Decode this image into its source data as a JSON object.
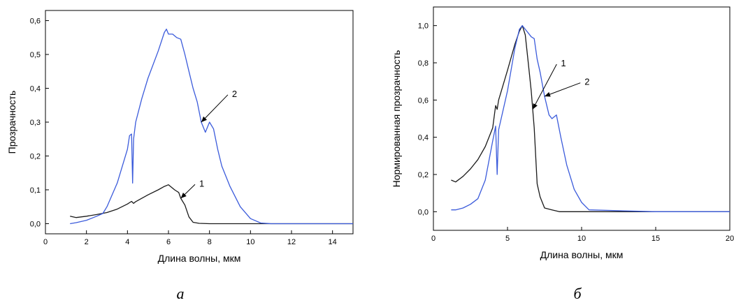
{
  "chart_data": [
    {
      "id": "a",
      "type": "line",
      "caption": "а",
      "xlabel": "Длина волны, мкм",
      "ylabel": "Прозрачность",
      "xlim": [
        0,
        15
      ],
      "ylim": [
        -0.03,
        0.63
      ],
      "xticks": [
        "0",
        "2",
        "4",
        "6",
        "8",
        "10",
        "12",
        "14"
      ],
      "yticks": [
        "0,0",
        "0,1",
        "0,2",
        "0,3",
        "0,4",
        "0,5",
        "0,6"
      ],
      "colors": {
        "1": "#1a1a1a",
        "2": "#3b5bdb"
      },
      "series": [
        {
          "name": "1",
          "x": [
            1.2,
            1.5,
            2,
            2.5,
            3,
            3.5,
            4,
            4.2,
            4.3,
            4.4,
            5,
            5.5,
            5.8,
            6,
            6.3,
            6.5,
            6.6,
            6.8,
            7,
            7.2,
            7.5,
            8,
            9,
            10,
            12,
            15
          ],
          "y": [
            0.022,
            0.018,
            0.022,
            0.027,
            0.033,
            0.043,
            0.058,
            0.066,
            0.06,
            0.065,
            0.085,
            0.1,
            0.11,
            0.115,
            0.1,
            0.092,
            0.075,
            0.055,
            0.02,
            0.004,
            0.001,
            0.0,
            0.0,
            0.0,
            0.0,
            0.0
          ]
        },
        {
          "name": "2",
          "x": [
            1.2,
            1.5,
            2,
            2.5,
            2.8,
            3,
            3.5,
            4,
            4.1,
            4.2,
            4.25,
            4.3,
            4.4,
            4.7,
            5,
            5.5,
            5.8,
            5.9,
            6,
            6.2,
            6.4,
            6.6,
            6.8,
            7,
            7.2,
            7.4,
            7.6,
            7.8,
            8,
            8.2,
            8.4,
            8.6,
            9,
            9.5,
            10,
            10.5,
            11,
            15
          ],
          "y": [
            0.0,
            0.003,
            0.01,
            0.022,
            0.03,
            0.05,
            0.12,
            0.22,
            0.26,
            0.265,
            0.12,
            0.25,
            0.3,
            0.37,
            0.43,
            0.51,
            0.565,
            0.575,
            0.56,
            0.56,
            0.55,
            0.545,
            0.5,
            0.45,
            0.4,
            0.36,
            0.3,
            0.27,
            0.3,
            0.28,
            0.22,
            0.17,
            0.11,
            0.05,
            0.015,
            0.002,
            0.0,
            0.0
          ]
        }
      ],
      "annotations": [
        {
          "text": "1",
          "series": "1",
          "at_x": 6.6,
          "label_x": 7.5,
          "label_y": 0.12
        },
        {
          "text": "2",
          "series": "2",
          "at_x": 7.6,
          "label_x": 9.1,
          "label_y": 0.385
        }
      ]
    },
    {
      "id": "b",
      "type": "line",
      "caption": "б",
      "xlabel": "Длина волны, мкм",
      "ylabel": "Нормированная прозрачность",
      "xlim": [
        0,
        20
      ],
      "ylim": [
        -0.1,
        1.1
      ],
      "xticks": [
        "0",
        "5",
        "10",
        "15",
        "20"
      ],
      "yticks": [
        "0,0",
        "0,2",
        "0,4",
        "0,6",
        "0,8",
        "1,0"
      ],
      "colors": {
        "1": "#1a1a1a",
        "2": "#3b5bdb"
      },
      "series": [
        {
          "name": "1",
          "x": [
            1.2,
            1.5,
            2,
            2.5,
            3,
            3.5,
            4,
            4.2,
            4.3,
            4.4,
            5,
            5.5,
            5.8,
            6,
            6.2,
            6.4,
            6.6,
            6.8,
            7,
            7.2,
            7.5,
            8,
            8.5,
            9,
            12,
            15,
            20
          ],
          "y": [
            0.17,
            0.16,
            0.19,
            0.23,
            0.28,
            0.35,
            0.45,
            0.57,
            0.55,
            0.6,
            0.76,
            0.9,
            0.97,
            1.0,
            0.95,
            0.8,
            0.65,
            0.45,
            0.15,
            0.08,
            0.02,
            0.01,
            0.0,
            0.0,
            0.0,
            0.0,
            0.0
          ]
        },
        {
          "name": "2",
          "x": [
            1.2,
            1.5,
            2,
            2.5,
            3,
            3.5,
            4,
            4.2,
            4.3,
            4.4,
            5,
            5.5,
            5.8,
            6,
            6.2,
            6.4,
            6.6,
            6.8,
            7,
            7.2,
            7.5,
            7.8,
            8,
            8.3,
            8.6,
            9,
            9.5,
            10,
            10.5,
            15,
            20
          ],
          "y": [
            0.01,
            0.01,
            0.02,
            0.04,
            0.07,
            0.17,
            0.38,
            0.46,
            0.2,
            0.44,
            0.65,
            0.88,
            0.98,
            1.0,
            0.98,
            0.96,
            0.94,
            0.93,
            0.82,
            0.75,
            0.62,
            0.52,
            0.5,
            0.52,
            0.4,
            0.25,
            0.12,
            0.05,
            0.01,
            0.0,
            0.0
          ]
        }
      ],
      "annotations": [
        {
          "text": "1",
          "series": "1",
          "at_x": 6.7,
          "label_x": 8.6,
          "label_y": 0.8
        },
        {
          "text": "2",
          "series": "2",
          "at_x": 7.5,
          "label_x": 10.2,
          "label_y": 0.7
        }
      ]
    }
  ]
}
